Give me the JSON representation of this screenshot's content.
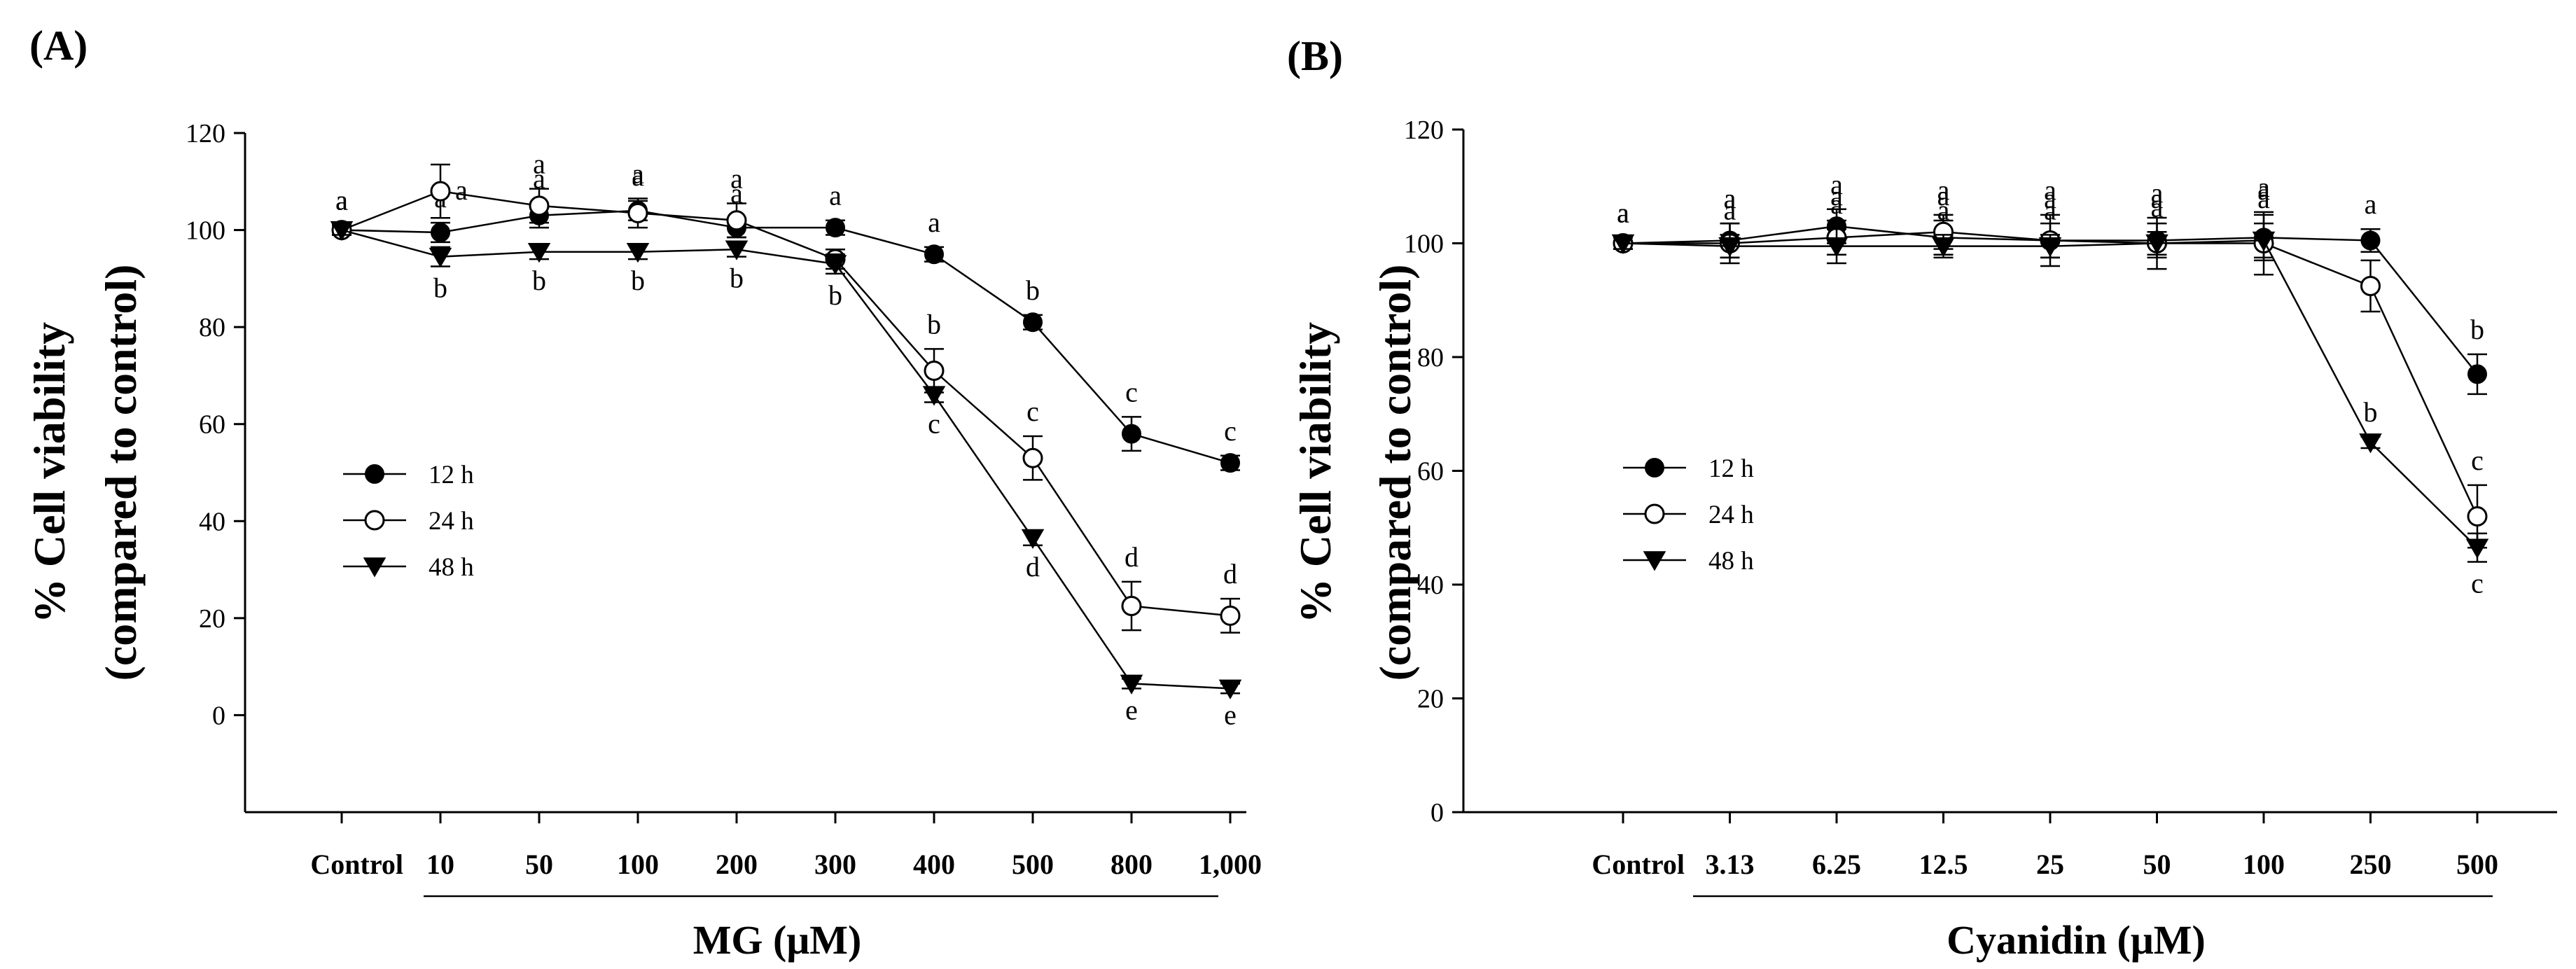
{
  "chart_data": [
    {
      "type": "line",
      "panel_label": "(A)",
      "title": "",
      "xlabel": "MG (μM)",
      "ylabel": "% Cell viability",
      "ylabel2": "(compared to control)",
      "categories": [
        "Control",
        "10",
        "50",
        "100",
        "200",
        "300",
        "400",
        "500",
        "800",
        "1,000"
      ],
      "ylim": [
        -20,
        120
      ],
      "yticks": [
        "0",
        "20",
        "40",
        "60",
        "80",
        "100",
        "120"
      ],
      "legend_position": "center-left",
      "series": [
        {
          "name": "12 h",
          "marker": "filled-circle",
          "values": [
            100,
            99.5,
            103,
            104,
            100.5,
            100.5,
            95,
            81,
            58,
            52
          ],
          "errors": [
            1,
            2,
            2.5,
            2,
            2,
            1.5,
            1.5,
            1.5,
            3.5,
            1.5
          ],
          "letters": [
            "a",
            "a",
            "a",
            "a",
            "a",
            "a",
            "a",
            "b",
            "c",
            "c"
          ]
        },
        {
          "name": "24 h",
          "marker": "open-circle",
          "values": [
            100,
            108,
            105,
            103.5,
            102,
            94,
            71,
            53,
            22.5,
            20.5
          ],
          "errors": [
            1,
            5.5,
            3.5,
            3,
            3.5,
            2,
            4.5,
            4.5,
            5,
            3.5
          ],
          "letters": [
            "a",
            "a",
            "a",
            "a",
            "a",
            "a",
            "b",
            "c",
            "d",
            "d"
          ]
        },
        {
          "name": "48 h",
          "marker": "filled-triangle-down",
          "values": [
            100,
            94.5,
            95.5,
            95.5,
            96,
            93,
            66,
            36.5,
            6.5,
            5.5
          ],
          "errors": [
            1,
            2,
            1.5,
            1.5,
            1.5,
            2,
            1.5,
            1.5,
            1,
            1
          ],
          "letters": [
            "a",
            "b",
            "b",
            "b",
            "b",
            "b",
            "c",
            "d",
            "e",
            "e"
          ]
        }
      ]
    },
    {
      "type": "line",
      "panel_label": "(B)",
      "title": "",
      "xlabel": "Cyanidin (μM)",
      "ylabel": "% Cell viability",
      "ylabel2": "(compared to control)",
      "categories": [
        "Control",
        "3.13",
        "6.25",
        "12.5",
        "25",
        "50",
        "100",
        "250",
        "500"
      ],
      "ylim": [
        0,
        120
      ],
      "yticks": [
        "0",
        "20",
        "40",
        "60",
        "80",
        "100",
        "120"
      ],
      "legend_position": "center-left",
      "series": [
        {
          "name": "12 h",
          "marker": "filled-circle",
          "values": [
            100,
            100.5,
            103,
            101,
            100.5,
            100.5,
            101,
            100.5,
            77
          ],
          "errors": [
            1,
            3,
            3,
            3,
            3,
            3,
            4,
            2,
            3.5
          ],
          "letters": [
            "a",
            "a",
            "a",
            "a",
            "a",
            "a",
            "a",
            "a",
            "b"
          ]
        },
        {
          "name": "24 h",
          "marker": "open-circle",
          "values": [
            100,
            100,
            101,
            102,
            100.5,
            100,
            100,
            92.5,
            52
          ],
          "errors": [
            1,
            3.5,
            3,
            3,
            4.5,
            4.5,
            5.5,
            4.5,
            5.5
          ],
          "letters": [
            "a",
            "a",
            "a",
            "a",
            "a",
            "a",
            "a",
            "a",
            "c"
          ]
        },
        {
          "name": "48 h",
          "marker": "filled-triangle-down",
          "values": [
            100,
            99.5,
            99.5,
            99.5,
            99.5,
            100,
            100.5,
            65,
            46.5
          ],
          "errors": [
            1,
            2,
            3,
            2,
            2,
            2,
            3,
            1,
            2.5
          ],
          "letters": [
            "a",
            "a",
            "a",
            "a",
            "a",
            "a",
            "a",
            "b",
            "c"
          ]
        }
      ]
    }
  ]
}
